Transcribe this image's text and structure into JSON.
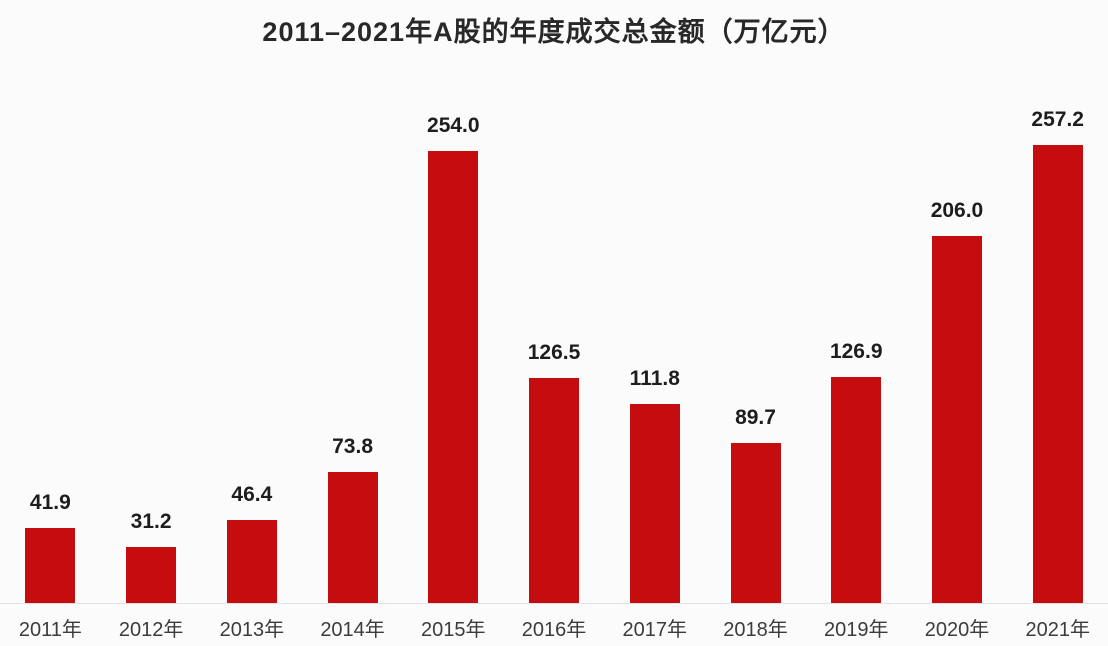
{
  "colors": {
    "background": "#fcfbfb",
    "bar": "#c50d10",
    "title_text": "#282828",
    "value_label_text": "#1d1d1d",
    "x_label_text": "#3c3c3c",
    "axis_line": "#e3e1e1"
  },
  "chart_data": {
    "type": "bar",
    "title": "2011–2021年A股的年度成交总金额（万亿元）",
    "categories": [
      "2011年",
      "2012年",
      "2013年",
      "2014年",
      "2015年",
      "2016年",
      "2017年",
      "2018年",
      "2019年",
      "2020年",
      "2021年"
    ],
    "values": [
      41.9,
      31.2,
      46.4,
      73.8,
      254.0,
      126.5,
      111.8,
      89.7,
      126.9,
      206.0,
      257.2
    ],
    "value_labels": [
      "41.9",
      "31.2",
      "46.4",
      "73.8",
      "254.0",
      "126.5",
      "111.8",
      "89.7",
      "126.9",
      "206.0",
      "257.2"
    ],
    "xlabel": "",
    "ylabel": "",
    "ylim": [
      0,
      260
    ],
    "grid": false,
    "legend": "none",
    "value_labels_position": "above-bars",
    "baseline_axis": "x"
  }
}
